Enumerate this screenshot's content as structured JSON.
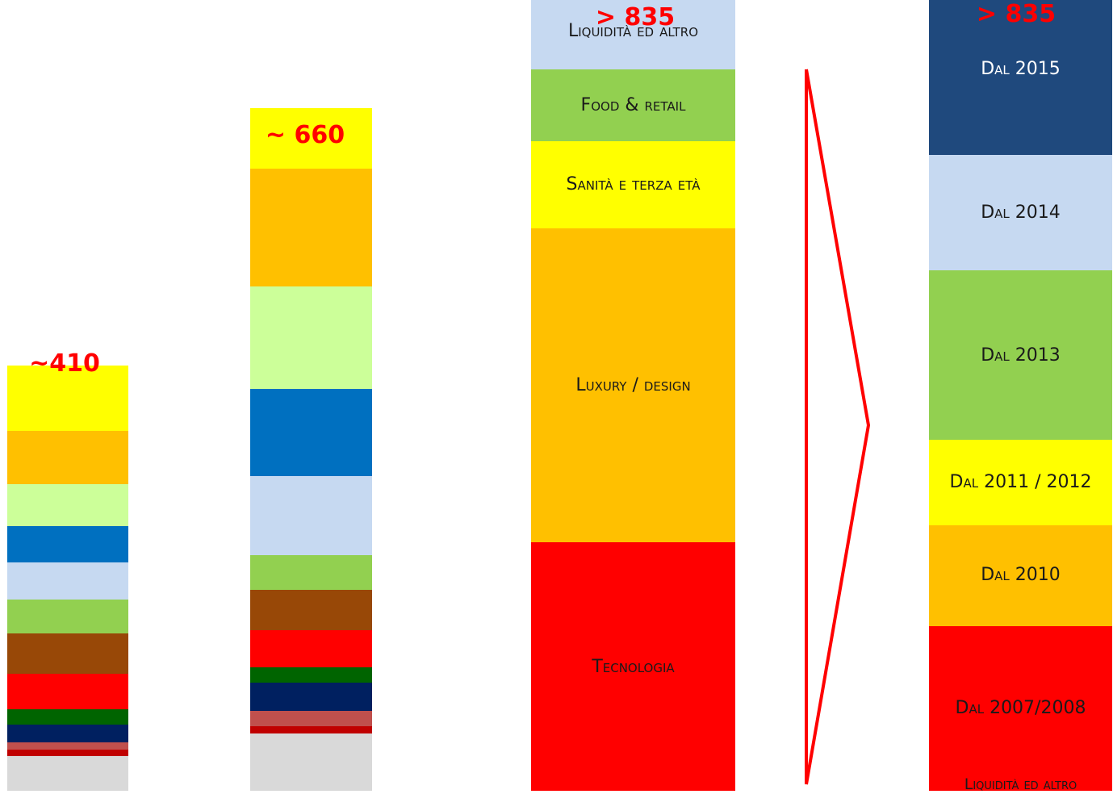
{
  "chart_data": [
    {
      "type": "bar",
      "stacked": true,
      "total_label": "~410",
      "segments": [
        {
          "color": "#d9d9d9",
          "value": 40
        },
        {
          "color": "#c00000",
          "value": 7
        },
        {
          "color": "#c0504d",
          "value": 8
        },
        {
          "color": "#002060",
          "value": 20
        },
        {
          "color": "#006400",
          "value": 18
        },
        {
          "color": "#ff0000",
          "value": 40
        },
        {
          "color": "#984807",
          "value": 46
        },
        {
          "color": "#92d050",
          "value": 39
        },
        {
          "color": "#c6d9f1",
          "value": 42
        },
        {
          "color": "#0070c0",
          "value": 42
        },
        {
          "color": "#ccff99",
          "value": 48
        },
        {
          "color": "#ffc000",
          "value": 60
        },
        {
          "color": "#ffff00",
          "value": 75
        }
      ]
    },
    {
      "type": "bar",
      "stacked": true,
      "total_label": "~ 660",
      "segments": [
        {
          "color": "#d9d9d9",
          "value": 65
        },
        {
          "color": "#c00000",
          "value": 9
        },
        {
          "color": "#c0504d",
          "value": 17
        },
        {
          "color": "#002060",
          "value": 32
        },
        {
          "color": "#006400",
          "value": 18
        },
        {
          "color": "#ff0000",
          "value": 42
        },
        {
          "color": "#984807",
          "value": 46
        },
        {
          "color": "#92d050",
          "value": 40
        },
        {
          "color": "#c6d9f1",
          "value": 90
        },
        {
          "color": "#0070c0",
          "value": 99
        },
        {
          "color": "#ccff99",
          "value": 117
        },
        {
          "color": "#ffc000",
          "value": 134
        },
        {
          "color": "#ffff00",
          "value": 69
        }
      ]
    },
    {
      "type": "bar",
      "stacked": true,
      "total_label": "> 835",
      "segments": [
        {
          "label": "Tecnologia",
          "color": "#ff0000",
          "value": 283
        },
        {
          "label": "Luxury / design",
          "color": "#ffc000",
          "value": 358
        },
        {
          "label": "Sanità e terza età",
          "color": "#ffff00",
          "value": 100
        },
        {
          "label": "Food & retail",
          "color": "#92d050",
          "value": 81
        },
        {
          "label": "Liquidità ed altro",
          "color": "#c6d9f1",
          "value": 88
        }
      ]
    },
    {
      "type": "bar",
      "stacked": true,
      "total_label": "> 835",
      "segments": [
        {
          "label": "Liquidità ed altro",
          "color": "#ff0000",
          "value": 0
        },
        {
          "label": "Dal 2007/2008",
          "color": "#ff0000",
          "value": 188
        },
        {
          "label": "Dal 2010",
          "color": "#ffc000",
          "value": 115
        },
        {
          "label": "Dal 2011 / 2012",
          "color": "#ffff00",
          "value": 97
        },
        {
          "label": "Dal 2013",
          "color": "#92d050",
          "value": 193
        },
        {
          "label": "Dal 2014",
          "color": "#c6d9f1",
          "value": 132
        },
        {
          "label": "Dal 2015",
          "color": "#1f497d",
          "value": 195
        }
      ]
    }
  ]
}
